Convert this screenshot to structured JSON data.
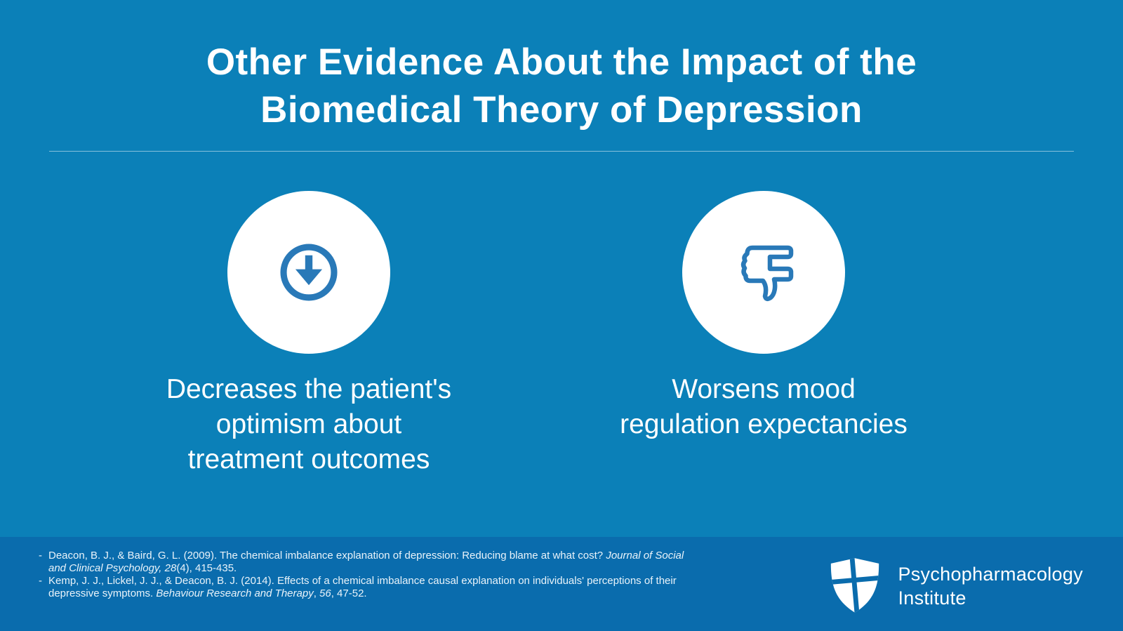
{
  "theme": {
    "background": "#0b80b8",
    "footer_background": "#0a6cad",
    "icon_blue": "#2979b8",
    "divider": "rgba(255,255,255,0.5)",
    "text_color": "#ffffff"
  },
  "title": {
    "line1": "Other Evidence About the Impact of the",
    "line2": "Biomedical Theory of Depression"
  },
  "items": [
    {
      "icon": "down-arrow-circle-icon",
      "caption_lines": [
        "Decreases the patient's",
        "optimism about",
        "treatment outcomes"
      ]
    },
    {
      "icon": "thumbs-down-icon",
      "caption_lines": [
        "Worsens mood",
        "regulation expectancies"
      ]
    }
  ],
  "references": {
    "bullet": "-",
    "items": [
      {
        "segments": [
          {
            "text": "Deacon, B. J., & Baird, G. L. (2009). The chemical imbalance explanation of depression: Reducing blame at what cost? "
          },
          {
            "text": "Journal of Social",
            "italic": true
          },
          {
            "break": true
          },
          {
            "text": "and Clinical Psychology, 28",
            "italic": true
          },
          {
            "text": "(4), 415-435."
          }
        ]
      },
      {
        "segments": [
          {
            "text": "Kemp, J. J., Lickel, J. J., & Deacon, B. J. (2014). Effects of a chemical imbalance causal explanation on individuals' perceptions of their"
          },
          {
            "break": true
          },
          {
            "text": "depressive symptoms. "
          },
          {
            "text": "Behaviour Research and Therapy",
            "italic": true
          },
          {
            "text": ", "
          },
          {
            "text": "56",
            "italic": true
          },
          {
            "text": ", 47-52."
          }
        ]
      }
    ]
  },
  "logo": {
    "icon": "shield-cross-logo-icon",
    "line1": "Psychopharmacology",
    "line2": "Institute"
  }
}
